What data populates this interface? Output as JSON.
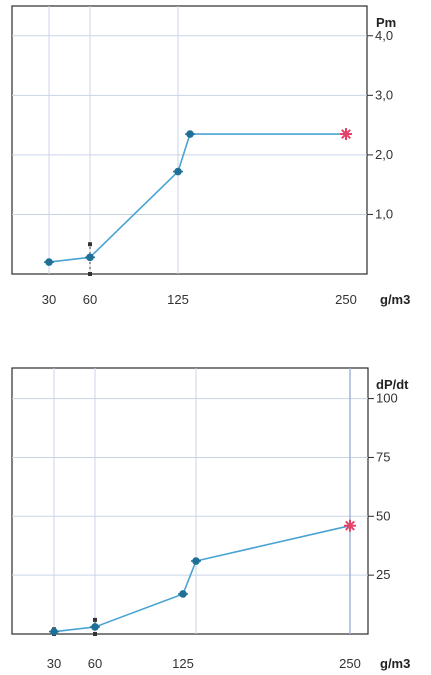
{
  "colors": {
    "series": "#4aa3d4",
    "marker": "#1f6f96",
    "last_marker": "#e2446a",
    "grid": "#c9d3e6",
    "frame": "#2b2b2b",
    "axis_v": "#9bb2d8"
  },
  "chart_data": [
    {
      "type": "line",
      "xlabel": "g/m3",
      "ylabel": "Pm",
      "x_ticks": [
        30,
        60,
        125,
        250
      ],
      "x_tick_labels": [
        "30",
        "60",
        "125",
        "250"
      ],
      "y_ticks": [
        1.0,
        2.0,
        3.0,
        4.0
      ],
      "y_tick_labels": [
        "1,0",
        "2,0",
        "3,0",
        "4,0"
      ],
      "ylim": [
        0,
        4.5
      ],
      "grid": true,
      "x": [
        30,
        60,
        125,
        135,
        250
      ],
      "y": [
        0.2,
        0.28,
        1.72,
        2.35,
        2.35
      ],
      "error_bars": [
        {
          "x": 60,
          "low": 0.0,
          "high": 0.5
        }
      ]
    },
    {
      "type": "line",
      "xlabel": "g/m3",
      "ylabel": "dP/dt",
      "x_ticks": [
        30,
        60,
        125,
        250
      ],
      "x_tick_labels": [
        "30",
        "60",
        "125",
        "250"
      ],
      "y_ticks": [
        25,
        50,
        75,
        100
      ],
      "y_tick_labels": [
        "25",
        "50",
        "75",
        "100"
      ],
      "ylim": [
        0,
        113
      ],
      "grid": true,
      "x": [
        30,
        60,
        125,
        135,
        250
      ],
      "y": [
        1,
        3,
        17,
        31,
        46
      ],
      "error_bars": [
        {
          "x": 30,
          "low": 0,
          "high": 2
        },
        {
          "x": 60,
          "low": 0,
          "high": 6
        }
      ]
    }
  ]
}
